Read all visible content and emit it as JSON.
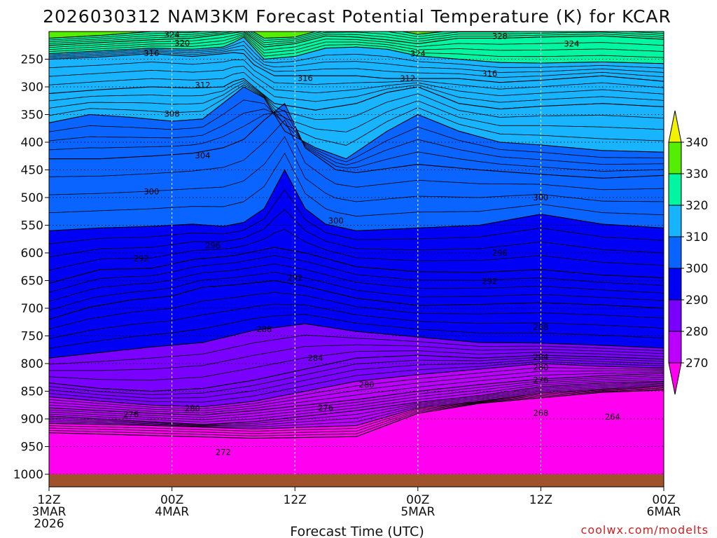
{
  "chart_data": {
    "type": "time-height contour",
    "title": "2026030312 NAM3KM Forecast Potential Temperature (K) for KCAR",
    "xlabel": "Forecast Time (UTC)",
    "credit": "coolwx.com/modelts",
    "y_axis": {
      "reversed": true,
      "range": [
        200,
        1000
      ],
      "ticks": [
        250,
        300,
        350,
        400,
        450,
        500,
        550,
        600,
        650,
        700,
        750,
        800,
        850,
        900,
        950,
        1000
      ],
      "tick_labels": [
        "250",
        "300",
        "350",
        "400",
        "450",
        "500",
        "550",
        "600",
        "650",
        "700",
        "750",
        "800",
        "850",
        "900",
        "950",
        "1000"
      ]
    },
    "x_axis": {
      "range": [
        0,
        60
      ],
      "units": "hours since 12Z 3MAR",
      "ticks": [
        {
          "x": 0,
          "lines": [
            "12Z",
            "3MAR",
            "2026"
          ]
        },
        {
          "x": 12,
          "lines": [
            "00Z",
            "4MAR"
          ]
        },
        {
          "x": 24,
          "lines": [
            "12Z"
          ]
        },
        {
          "x": 36,
          "lines": [
            "00Z",
            "5MAR"
          ]
        },
        {
          "x": 48,
          "lines": [
            "12Z"
          ]
        },
        {
          "x": 60,
          "lines": [
            "00Z",
            "6MAR"
          ]
        }
      ]
    },
    "colorbar": {
      "levels": [
        270,
        280,
        290,
        300,
        310,
        320,
        330,
        340
      ],
      "labels": [
        "270",
        "280",
        "290",
        "300",
        "310",
        "320",
        "330",
        "340"
      ],
      "colors": [
        "#ff00f0",
        "#bb00ff",
        "#7a00ff",
        "#0000f5",
        "#0a64ff",
        "#18b4ff",
        "#00f6a0",
        "#55ee00",
        "#f2f200"
      ]
    },
    "ground_color": "#a0522d",
    "isotherms": [
      {
        "value": 264,
        "points": [
          [
            0,
            925
          ],
          [
            10,
            930
          ],
          [
            20,
            935
          ],
          [
            30,
            932
          ],
          [
            36,
            890
          ],
          [
            42,
            872
          ],
          [
            48,
            862
          ],
          [
            54,
            852
          ],
          [
            60,
            848
          ]
        ]
      },
      {
        "value": 268,
        "points": [
          [
            0,
            908
          ],
          [
            10,
            912
          ],
          [
            20,
            918
          ],
          [
            30,
            912
          ],
          [
            36,
            880
          ],
          [
            42,
            868
          ],
          [
            48,
            853
          ],
          [
            54,
            846
          ],
          [
            60,
            840
          ]
        ]
      },
      {
        "value": 272,
        "points": [
          [
            0,
            895
          ],
          [
            5,
            900
          ],
          [
            10,
            905
          ],
          [
            15,
            910
          ],
          [
            20,
            905
          ],
          [
            25,
            895
          ],
          [
            30,
            885
          ],
          [
            36,
            870
          ],
          [
            42,
            858
          ],
          [
            48,
            842
          ],
          [
            54,
            835
          ],
          [
            60,
            832
          ]
        ]
      },
      {
        "value": 276,
        "points": [
          [
            0,
            880
          ],
          [
            5,
            885
          ],
          [
            10,
            890
          ],
          [
            15,
            893
          ],
          [
            20,
            885
          ],
          [
            25,
            875
          ],
          [
            30,
            865
          ],
          [
            36,
            850
          ],
          [
            42,
            838
          ],
          [
            48,
            828
          ],
          [
            54,
            822
          ],
          [
            60,
            818
          ]
        ]
      },
      {
        "value": 280,
        "points": [
          [
            0,
            860
          ],
          [
            5,
            868
          ],
          [
            10,
            875
          ],
          [
            15,
            878
          ],
          [
            20,
            868
          ],
          [
            25,
            850
          ],
          [
            30,
            832
          ],
          [
            36,
            820
          ],
          [
            42,
            810
          ],
          [
            48,
            800
          ],
          [
            54,
            805
          ],
          [
            60,
            808
          ]
        ]
      },
      {
        "value": 284,
        "points": [
          [
            0,
            835
          ],
          [
            5,
            845
          ],
          [
            10,
            850
          ],
          [
            15,
            845
          ],
          [
            20,
            830
          ],
          [
            25,
            810
          ],
          [
            30,
            790
          ],
          [
            36,
            785
          ],
          [
            42,
            790
          ],
          [
            48,
            785
          ],
          [
            54,
            788
          ],
          [
            60,
            792
          ]
        ]
      },
      {
        "value": 288,
        "points": [
          [
            0,
            790
          ],
          [
            5,
            780
          ],
          [
            10,
            770
          ],
          [
            15,
            762
          ],
          [
            20,
            740
          ],
          [
            25,
            728
          ],
          [
            30,
            742
          ],
          [
            36,
            752
          ],
          [
            42,
            762
          ],
          [
            48,
            763
          ],
          [
            54,
            767
          ],
          [
            60,
            772
          ]
        ]
      },
      {
        "value": 292,
        "points": [
          [
            0,
            720
          ],
          [
            4,
            698
          ],
          [
            8,
            685
          ],
          [
            12,
            678
          ],
          [
            15,
            662
          ],
          [
            18,
            658
          ],
          [
            22,
            650
          ],
          [
            25,
            660
          ],
          [
            30,
            682
          ],
          [
            36,
            695
          ],
          [
            42,
            693
          ],
          [
            48,
            690
          ],
          [
            54,
            694
          ],
          [
            60,
            700
          ]
        ]
      },
      {
        "value": 296,
        "points": [
          [
            0,
            655
          ],
          [
            5,
            630
          ],
          [
            10,
            628
          ],
          [
            14,
            612
          ],
          [
            18,
            605
          ],
          [
            22,
            590
          ],
          [
            25,
            600
          ],
          [
            30,
            625
          ],
          [
            36,
            634
          ],
          [
            42,
            635
          ],
          [
            48,
            630
          ],
          [
            54,
            640
          ],
          [
            60,
            645
          ]
        ]
      },
      {
        "value": 300,
        "points": [
          [
            0,
            560
          ],
          [
            5,
            555
          ],
          [
            10,
            552
          ],
          [
            14,
            548
          ],
          [
            17,
            552
          ],
          [
            19,
            545
          ],
          [
            21,
            520
          ],
          [
            23,
            450
          ],
          [
            25,
            520
          ],
          [
            27,
            548
          ],
          [
            30,
            560
          ],
          [
            36,
            555
          ],
          [
            42,
            550
          ],
          [
            48,
            530
          ],
          [
            54,
            548
          ],
          [
            60,
            555
          ]
        ]
      },
      {
        "value": 304,
        "points": [
          [
            0,
            430
          ],
          [
            5,
            430
          ],
          [
            10,
            425
          ],
          [
            14,
            420
          ],
          [
            17,
            410
          ],
          [
            19,
            395
          ],
          [
            21,
            360
          ],
          [
            23,
            330
          ],
          [
            25,
            410
          ],
          [
            28,
            450
          ],
          [
            30,
            455
          ],
          [
            36,
            440
          ],
          [
            42,
            450
          ],
          [
            48,
            458
          ],
          [
            54,
            465
          ],
          [
            60,
            460
          ]
        ]
      },
      {
        "value": 308,
        "points": [
          [
            0,
            365
          ],
          [
            4,
            350
          ],
          [
            8,
            355
          ],
          [
            12,
            362
          ],
          [
            15,
            358
          ],
          [
            18,
            315
          ],
          [
            19,
            300
          ],
          [
            21,
            320
          ],
          [
            23,
            380
          ],
          [
            26,
            410
          ],
          [
            29,
            430
          ],
          [
            33,
            380
          ],
          [
            36,
            350
          ],
          [
            40,
            380
          ],
          [
            44,
            400
          ],
          [
            48,
            405
          ],
          [
            54,
            415
          ],
          [
            60,
            418
          ]
        ]
      },
      {
        "value": 312,
        "points": [
          [
            0,
            312
          ],
          [
            5,
            305
          ],
          [
            10,
            300
          ],
          [
            14,
            302
          ],
          [
            17,
            300
          ],
          [
            18,
            290
          ],
          [
            19,
            285
          ],
          [
            20,
            300
          ],
          [
            22,
            330
          ],
          [
            26,
            342
          ],
          [
            30,
            330
          ],
          [
            33,
            310
          ],
          [
            36,
            300
          ],
          [
            40,
            330
          ],
          [
            44,
            340
          ],
          [
            48,
            335
          ],
          [
            54,
            330
          ],
          [
            60,
            336
          ]
        ]
      },
      {
        "value": 316,
        "points": [
          [
            0,
            250
          ],
          [
            5,
            246
          ],
          [
            10,
            240
          ],
          [
            14,
            245
          ],
          [
            17,
            240
          ],
          [
            18,
            238
          ],
          [
            19,
            240
          ],
          [
            20,
            260
          ],
          [
            22,
            280
          ],
          [
            26,
            280
          ],
          [
            30,
            280
          ],
          [
            33,
            285
          ],
          [
            36,
            285
          ],
          [
            40,
            285
          ],
          [
            44,
            292
          ],
          [
            48,
            288
          ],
          [
            54,
            280
          ],
          [
            60,
            290
          ]
        ]
      },
      {
        "value": 320,
        "points": [
          [
            0,
            240
          ],
          [
            5,
            235
          ],
          [
            10,
            230
          ],
          [
            14,
            232
          ],
          [
            17,
            228
          ],
          [
            18,
            220
          ],
          [
            19,
            210
          ],
          [
            21,
            250
          ],
          [
            24,
            245
          ],
          [
            27,
            230
          ],
          [
            30,
            228
          ],
          [
            33,
            232
          ],
          [
            36,
            244
          ],
          [
            40,
            250
          ],
          [
            44,
            256
          ],
          [
            48,
            257
          ],
          [
            54,
            255
          ],
          [
            60,
            258
          ]
        ]
      },
      {
        "value": 324,
        "points": [
          [
            0,
            225
          ],
          [
            5,
            220
          ],
          [
            10,
            215
          ],
          [
            14,
            212
          ],
          [
            17,
            205
          ],
          [
            19,
            200
          ],
          [
            21,
            228
          ],
          [
            24,
            222
          ],
          [
            27,
            208
          ],
          [
            30,
            210
          ],
          [
            33,
            215
          ],
          [
            36,
            222
          ],
          [
            40,
            212
          ],
          [
            44,
            212
          ],
          [
            48,
            210
          ],
          [
            54,
            208
          ],
          [
            60,
            214
          ]
        ]
      },
      {
        "value": 328,
        "points": [
          [
            0,
            212
          ],
          [
            5,
            207
          ],
          [
            10,
            200
          ],
          [
            14,
            198
          ],
          [
            17,
            195
          ],
          [
            19,
            190
          ],
          [
            21,
            212
          ],
          [
            24,
            210
          ],
          [
            27,
            195
          ],
          [
            30,
            192
          ],
          [
            33,
            195
          ],
          [
            36,
            205
          ],
          [
            40,
            197
          ],
          [
            44,
            197
          ],
          [
            48,
            196
          ],
          [
            54,
            194
          ],
          [
            60,
            200
          ]
        ]
      }
    ],
    "contour_labels": [
      {
        "text": "324",
        "x": 12.0,
        "p": 206
      },
      {
        "text": "320",
        "x": 13.0,
        "p": 221
      },
      {
        "text": "316",
        "x": 10.0,
        "p": 239
      },
      {
        "text": "312",
        "x": 15.0,
        "p": 297
      },
      {
        "text": "308",
        "x": 12.0,
        "p": 349
      },
      {
        "text": "304",
        "x": 15.0,
        "p": 424
      },
      {
        "text": "300",
        "x": 10.0,
        "p": 489
      },
      {
        "text": "296",
        "x": 16.0,
        "p": 587
      },
      {
        "text": "292",
        "x": 9.0,
        "p": 610
      },
      {
        "text": "288",
        "x": 21.0,
        "p": 738
      },
      {
        "text": "284",
        "x": 26.0,
        "p": 790
      },
      {
        "text": "280",
        "x": 14.0,
        "p": 881
      },
      {
        "text": "276",
        "x": 8.0,
        "p": 892
      },
      {
        "text": "272",
        "x": 17.0,
        "p": 960
      },
      {
        "text": "316",
        "x": 25.0,
        "p": 284
      },
      {
        "text": "312",
        "x": 35.0,
        "p": 285
      },
      {
        "text": "324",
        "x": 36.0,
        "p": 240
      },
      {
        "text": "328",
        "x": 44.0,
        "p": 208
      },
      {
        "text": "324",
        "x": 51.0,
        "p": 222
      },
      {
        "text": "316",
        "x": 43.0,
        "p": 276
      },
      {
        "text": "300",
        "x": 28.0,
        "p": 542
      },
      {
        "text": "300",
        "x": 48.0,
        "p": 500
      },
      {
        "text": "296",
        "x": 44.0,
        "p": 600
      },
      {
        "text": "292",
        "x": 24.0,
        "p": 645
      },
      {
        "text": "292",
        "x": 43.0,
        "p": 651
      },
      {
        "text": "284",
        "x": 48.0,
        "p": 788
      },
      {
        "text": "288",
        "x": 48.0,
        "p": 734
      },
      {
        "text": "280",
        "x": 48.0,
        "p": 807
      },
      {
        "text": "276",
        "x": 48.0,
        "p": 830
      },
      {
        "text": "280",
        "x": 31.0,
        "p": 838
      },
      {
        "text": "276",
        "x": 27.0,
        "p": 880
      },
      {
        "text": "268",
        "x": 48.0,
        "p": 889
      },
      {
        "text": "264",
        "x": 55.0,
        "p": 896
      }
    ]
  }
}
